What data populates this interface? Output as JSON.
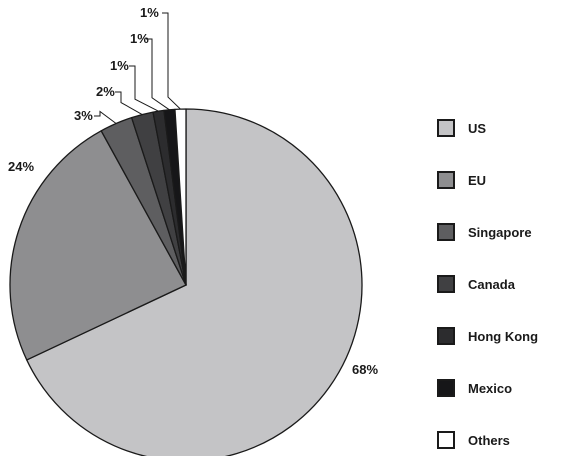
{
  "chart_data": {
    "type": "pie",
    "categories": [
      "US",
      "EU",
      "Singapore",
      "Canada",
      "Hong Kong",
      "Mexico",
      "Others"
    ],
    "values": [
      68,
      24,
      3,
      2,
      1,
      1,
      1
    ],
    "labels": [
      "68%",
      "24%",
      "3%",
      "2%",
      "1%",
      "1%",
      "1%"
    ],
    "colors": [
      "#c4c4c6",
      "#8e8e90",
      "#5e5e60",
      "#404042",
      "#2c2c2e",
      "#161618",
      "#ffffff"
    ],
    "start_angle": "12 o'clock",
    "direction": "clockwise",
    "legend_position": "right"
  }
}
